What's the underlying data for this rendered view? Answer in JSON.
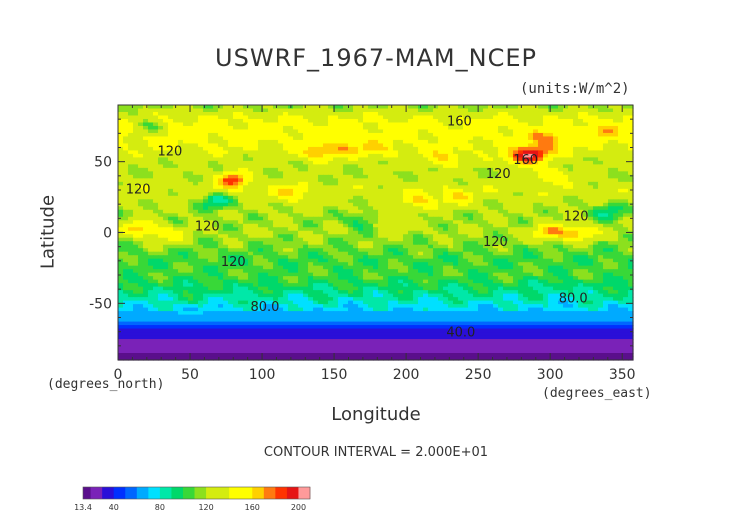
{
  "chart_data": {
    "type": "heatmap",
    "title": "USWRF_1967-MAM_NCEP",
    "units": "(units:W/m^2)",
    "xlabel": "Longitude",
    "ylabel": "Latitude",
    "x_unit_note": "(degrees_east)",
    "y_unit_note": "(degrees_north)",
    "xlim": [
      0,
      357.5
    ],
    "ylim": [
      -90,
      90
    ],
    "x_ticks": [
      0,
      50,
      100,
      150,
      200,
      250,
      300,
      350
    ],
    "y_ticks": [
      -50,
      0,
      50
    ],
    "contour_interval_text": "CONTOUR INTERVAL = 2.000E+01",
    "contour_labels": [
      {
        "lon": 237,
        "lat": 79,
        "text": "160"
      },
      {
        "lon": 283,
        "lat": 52,
        "text": "160"
      },
      {
        "lon": 36,
        "lat": 58,
        "text": "120"
      },
      {
        "lon": 14,
        "lat": 31,
        "text": "120"
      },
      {
        "lon": 62,
        "lat": 5,
        "text": "120"
      },
      {
        "lon": 80,
        "lat": -20,
        "text": "120"
      },
      {
        "lon": 264,
        "lat": 42,
        "text": "120"
      },
      {
        "lon": 262,
        "lat": -6,
        "text": "120"
      },
      {
        "lon": 318,
        "lat": 12,
        "text": "120"
      },
      {
        "lon": 102,
        "lat": -52,
        "text": "80.0"
      },
      {
        "lon": 316,
        "lat": -46,
        "text": "80.0"
      },
      {
        "lon": 238,
        "lat": -70,
        "text": "40.0"
      }
    ],
    "zonal_profile": [
      {
        "lat": 90,
        "value": 115
      },
      {
        "lat": 80,
        "value": 142
      },
      {
        "lat": 70,
        "value": 148
      },
      {
        "lat": 60,
        "value": 140
      },
      {
        "lat": 50,
        "value": 125
      },
      {
        "lat": 40,
        "value": 122
      },
      {
        "lat": 30,
        "value": 132
      },
      {
        "lat": 20,
        "value": 124
      },
      {
        "lat": 10,
        "value": 118
      },
      {
        "lat": 0,
        "value": 120
      },
      {
        "lat": -10,
        "value": 112
      },
      {
        "lat": -20,
        "value": 104
      },
      {
        "lat": -30,
        "value": 106
      },
      {
        "lat": -40,
        "value": 94
      },
      {
        "lat": -50,
        "value": 80
      },
      {
        "lat": -60,
        "value": 65
      },
      {
        "lat": -70,
        "value": 36
      },
      {
        "lat": -80,
        "value": 26
      },
      {
        "lat": -90,
        "value": 13
      }
    ],
    "hotspots": [
      {
        "lon": 140,
        "lat": 56,
        "value": 175
      },
      {
        "lon": 160,
        "lat": 60,
        "value": 165
      },
      {
        "lon": 180,
        "lat": 58,
        "value": 158
      },
      {
        "lon": 226,
        "lat": 52,
        "value": 165
      },
      {
        "lon": 290,
        "lat": 56,
        "value": 190
      },
      {
        "lon": 300,
        "lat": 66,
        "value": 175
      },
      {
        "lon": 278,
        "lat": 52,
        "value": 175
      },
      {
        "lon": 335,
        "lat": 72,
        "value": 165
      },
      {
        "lon": 80,
        "lat": 37,
        "value": 185
      },
      {
        "lon": 120,
        "lat": 28,
        "value": 168
      },
      {
        "lon": 210,
        "lat": 22,
        "value": 165
      },
      {
        "lon": 235,
        "lat": 25,
        "value": 160
      },
      {
        "lon": 15,
        "lat": 3,
        "value": 165
      },
      {
        "lon": 300,
        "lat": 0,
        "value": 170
      },
      {
        "lon": 320,
        "lat": 0,
        "value": 168
      },
      {
        "lon": 35,
        "lat": -2,
        "value": 150
      },
      {
        "lon": 190,
        "lat": 8,
        "value": 150
      },
      {
        "lon": 300,
        "lat": 40,
        "value": 160
      }
    ],
    "coldspots": [
      {
        "lon": 68,
        "lat": 22,
        "value": 85
      },
      {
        "lon": 170,
        "lat": 8,
        "value": 95
      },
      {
        "lon": 340,
        "lat": 15,
        "value": 90
      },
      {
        "lon": 305,
        "lat": -40,
        "value": 82
      },
      {
        "lon": 50,
        "lat": -45,
        "value": 92
      },
      {
        "lon": 20,
        "lat": 75,
        "value": 110
      }
    ],
    "colorbar": {
      "min_label": "13.4",
      "tick_labels": [
        {
          "value": 40,
          "text": "40"
        },
        {
          "value": 80,
          "text": "80"
        },
        {
          "value": 120,
          "text": "120"
        },
        {
          "value": 160,
          "text": "160"
        },
        {
          "value": 200,
          "text": "200"
        }
      ],
      "min": 13.4,
      "max": 210,
      "colors": [
        "#5a0f8c",
        "#7a22b8",
        "#2a0fd8",
        "#0030ff",
        "#0066ff",
        "#00aaff",
        "#00e0ff",
        "#00e8a8",
        "#00d86a",
        "#38d838",
        "#8ce01e",
        "#d4ec10",
        "#ffff00",
        "#ffd000",
        "#ff7a10",
        "#ff3300",
        "#e61414",
        "#ff9a9a"
      ]
    }
  }
}
